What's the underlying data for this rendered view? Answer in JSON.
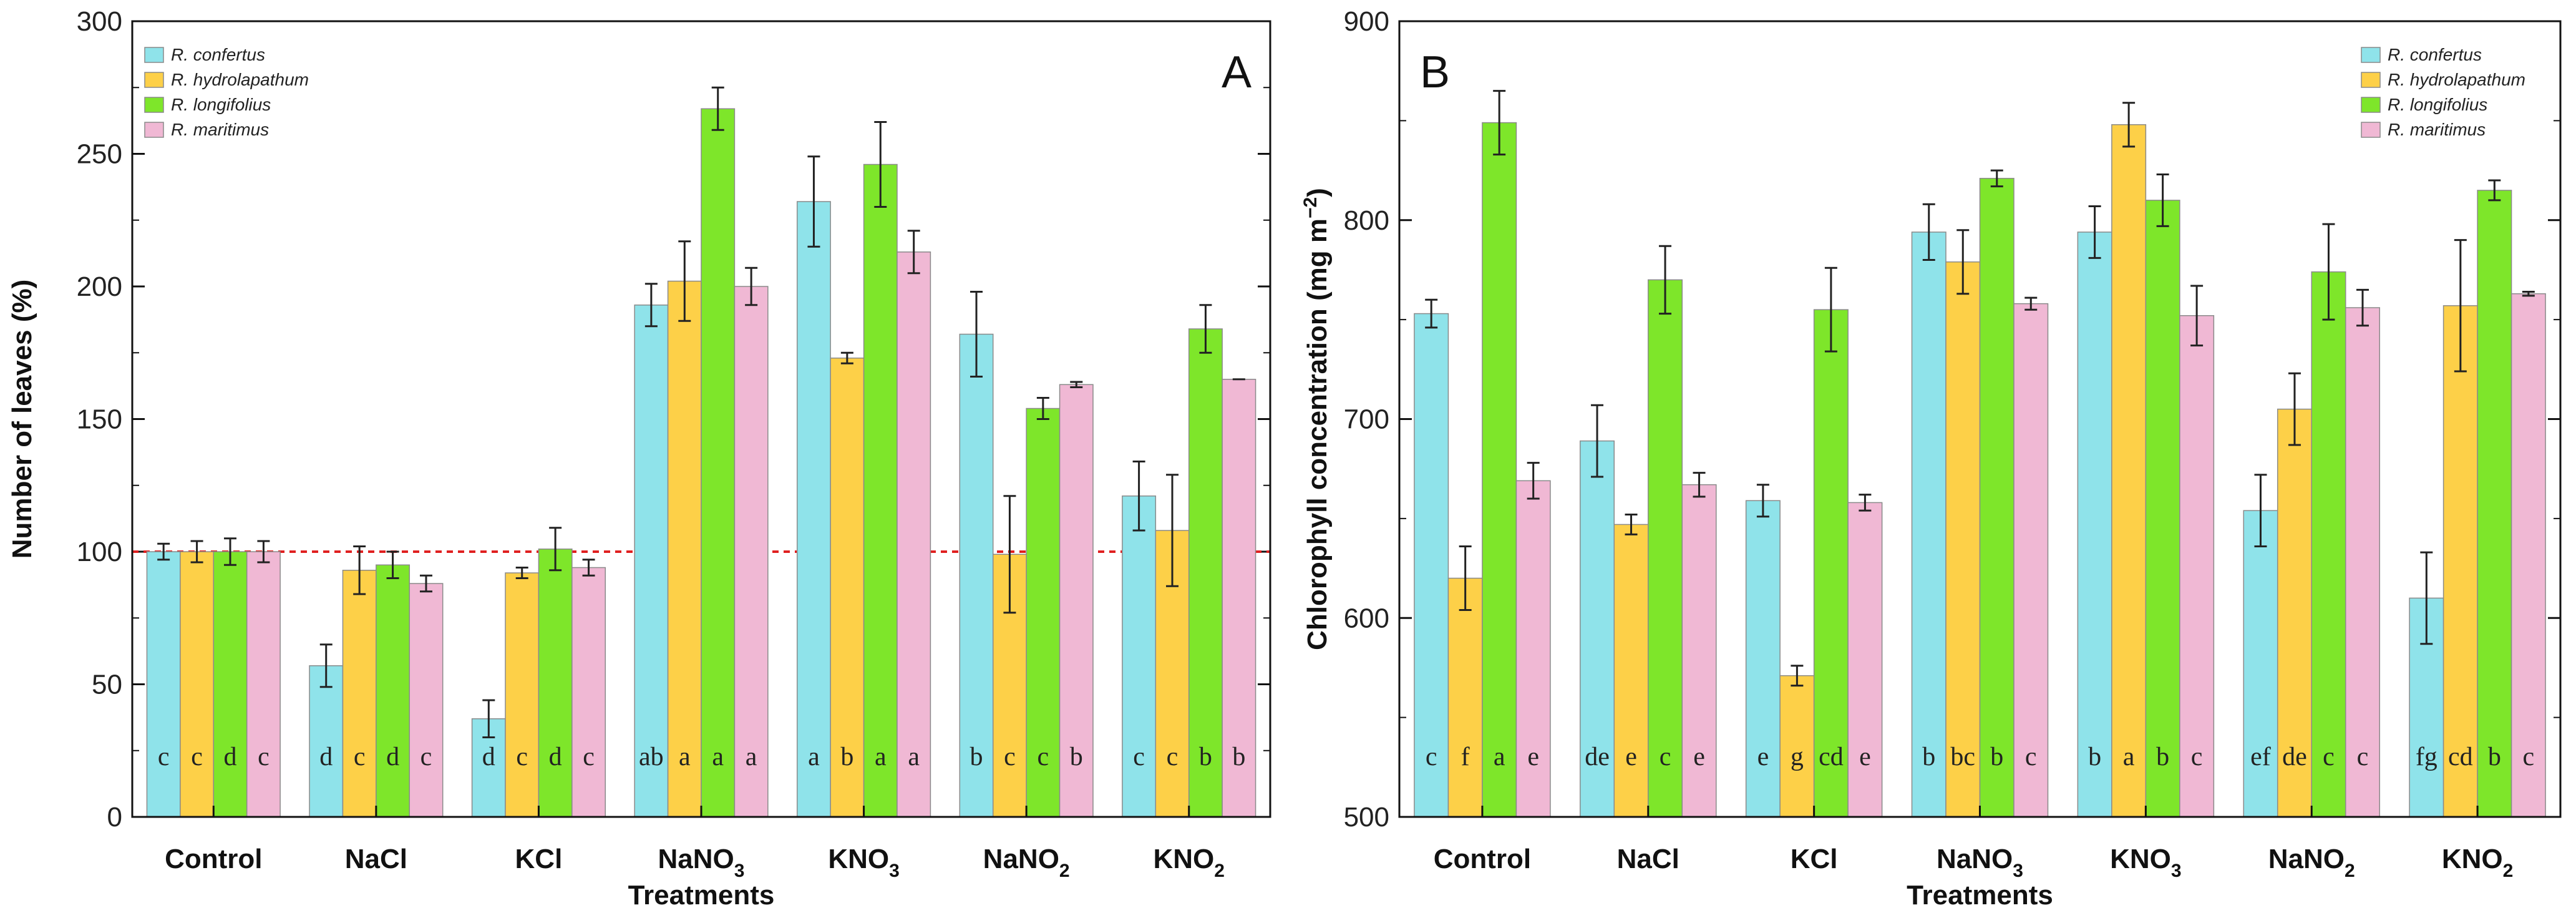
{
  "chart_data": [
    {
      "type": "bar",
      "panel_label": "A",
      "title": "",
      "xlabel": "Treatments",
      "ylabel": "Number of leaves (%)",
      "ylim": [
        0,
        300
      ],
      "yticks": [
        "0",
        "50",
        "100",
        "150",
        "200",
        "250",
        "300"
      ],
      "reference_line": 100,
      "categories": [
        {
          "label": "Control",
          "sub": ""
        },
        {
          "label": "NaCl",
          "sub": ""
        },
        {
          "label": "KCl",
          "sub": ""
        },
        {
          "label": "NaNO",
          "sub": "3"
        },
        {
          "label": "KNO",
          "sub": "3"
        },
        {
          "label": "NaNO",
          "sub": "2"
        },
        {
          "label": "KNO",
          "sub": "2"
        }
      ],
      "legend_position": "top-left",
      "series": [
        {
          "name": "R. confertus",
          "color": "#8fe3ea",
          "values": [
            100,
            57,
            37,
            193,
            232,
            182,
            121
          ],
          "errors": [
            3,
            8,
            7,
            8,
            17,
            16,
            13
          ],
          "letters": [
            "c",
            "d",
            "d",
            "ab",
            "a",
            "b",
            "c"
          ]
        },
        {
          "name": "R. hydrolapathum",
          "color": "#fdd048",
          "values": [
            100,
            93,
            92,
            202,
            173,
            99,
            108
          ],
          "errors": [
            4,
            9,
            2,
            15,
            2,
            22,
            21
          ],
          "letters": [
            "c",
            "c",
            "c",
            "a",
            "b",
            "c",
            "c"
          ]
        },
        {
          "name": "R. longifolius",
          "color": "#7ee62a",
          "values": [
            100,
            95,
            101,
            267,
            246,
            154,
            184
          ],
          "errors": [
            5,
            5,
            8,
            8,
            16,
            4,
            9
          ],
          "letters": [
            "d",
            "d",
            "d",
            "a",
            "a",
            "c",
            "b"
          ]
        },
        {
          "name": "R. maritimus",
          "color": "#f0b8d4",
          "values": [
            100,
            88,
            94,
            200,
            213,
            163,
            165
          ],
          "errors": [
            4,
            3,
            3,
            7,
            8,
            1,
            0
          ],
          "letters": [
            "c",
            "c",
            "c",
            "a",
            "a",
            "b",
            "b"
          ]
        }
      ]
    },
    {
      "type": "bar",
      "panel_label": "B",
      "title": "",
      "xlabel": "Treatments",
      "ylabel": "Chlorophyll concentration (mg m",
      "ylabel_sup": "−2",
      "ylabel_end": ")",
      "ylim": [
        500,
        900
      ],
      "yticks": [
        "500",
        "600",
        "700",
        "800",
        "900"
      ],
      "categories": [
        {
          "label": "Control",
          "sub": ""
        },
        {
          "label": "NaCl",
          "sub": ""
        },
        {
          "label": "KCl",
          "sub": ""
        },
        {
          "label": "NaNO",
          "sub": "3"
        },
        {
          "label": "KNO",
          "sub": "3"
        },
        {
          "label": "NaNO",
          "sub": "2"
        },
        {
          "label": "KNO",
          "sub": "2"
        }
      ],
      "legend_position": "top-right",
      "series": [
        {
          "name": "R. confertus",
          "color": "#8fe3ea",
          "values": [
            753,
            689,
            659,
            794,
            794,
            654,
            610
          ],
          "errors": [
            7,
            18,
            8,
            14,
            13,
            18,
            23
          ],
          "letters": [
            "c",
            "de",
            "e",
            "b",
            "b",
            "ef",
            "fg"
          ]
        },
        {
          "name": "R. hydrolapathum",
          "color": "#fdd048",
          "values": [
            620,
            647,
            571,
            779,
            848,
            705,
            757
          ],
          "errors": [
            16,
            5,
            5,
            16,
            11,
            18,
            33
          ],
          "letters": [
            "f",
            "e",
            "g",
            "bc",
            "a",
            "de",
            "cd"
          ]
        },
        {
          "name": "R. longifolius",
          "color": "#7ee62a",
          "values": [
            849,
            770,
            755,
            821,
            810,
            774,
            815
          ],
          "errors": [
            16,
            17,
            21,
            4,
            13,
            24,
            5
          ],
          "letters": [
            "a",
            "c",
            "cd",
            "b",
            "b",
            "c",
            "b"
          ]
        },
        {
          "name": "R. maritimus",
          "color": "#f0b8d4",
          "values": [
            669,
            667,
            658,
            758,
            752,
            756,
            763
          ],
          "errors": [
            9,
            6,
            4,
            3,
            15,
            9,
            1
          ],
          "letters": [
            "e",
            "e",
            "e",
            "c",
            "c",
            "c",
            "c"
          ]
        }
      ]
    }
  ]
}
